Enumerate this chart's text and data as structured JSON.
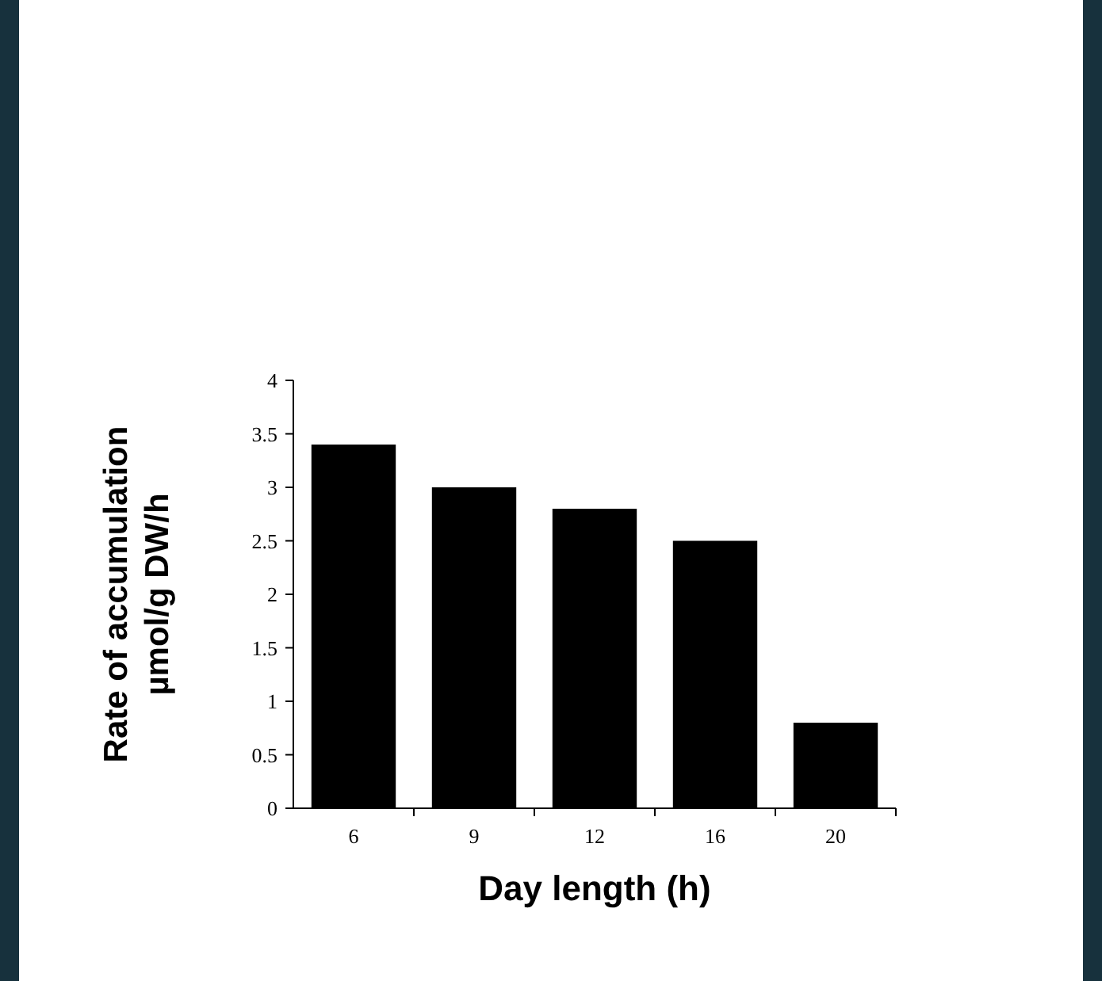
{
  "chart_data": {
    "type": "bar",
    "xlabel": "Day length (h)",
    "ylabel": "Rate of accumulation\nµmol/g DW/h",
    "categories": [
      "6",
      "9",
      "12",
      "16",
      "20"
    ],
    "values": [
      3.4,
      3.0,
      2.8,
      2.5,
      0.8
    ],
    "color": "#000000",
    "ylim": [
      0,
      4
    ],
    "yticks": [
      0,
      {
        "value": 0.5,
        "label": "0.5"
      },
      1,
      {
        "value": 1.5,
        "label": "1.5"
      },
      2,
      {
        "value": 2.5,
        "label": "2.5"
      },
      3,
      {
        "value": 3.5,
        "label": "3.5"
      },
      4
    ],
    "grid": false
  }
}
